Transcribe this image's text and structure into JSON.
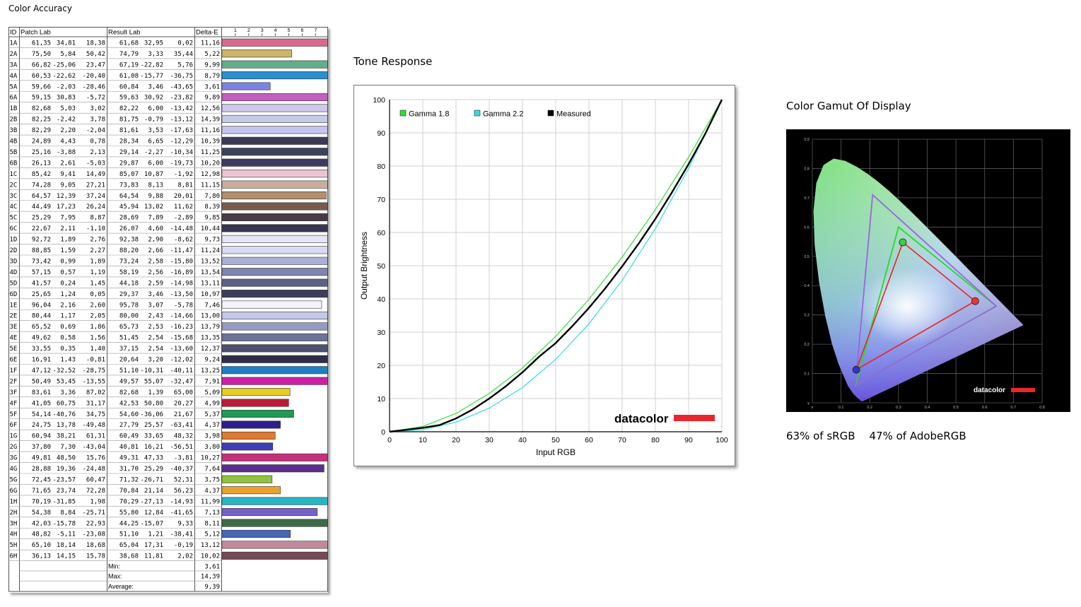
{
  "titles": {
    "color_accuracy": "Color Accuracy",
    "tone_response": "Tone Response",
    "color_gamut": "Color Gamut Of Display"
  },
  "coverage": {
    "srgb": "63% of sRGB",
    "adobe": "47% of AdobeRGB"
  },
  "brand": "datacolor",
  "colors": {
    "accent_red": "#e8262f",
    "gamma18": "#33dd33",
    "gamma22": "#33dddd",
    "measured": "#000000",
    "grid": "#d0d0d0",
    "srgb_triangle": "#22dd22",
    "adobe_triangle": "#9966dd",
    "display_triangle": "#ee2222"
  },
  "table": {
    "headers": {
      "id": "ID",
      "patch": "Patch Lab",
      "result": "Result Lab",
      "delta": "Delta-E"
    },
    "scale_ticks": [
      "1",
      "2",
      "3",
      "4",
      "5",
      "6",
      "7"
    ],
    "rows": [
      {
        "id": "1A",
        "p": [
          "61,35",
          "34,81",
          "18,38"
        ],
        "r": [
          "61,68",
          "32,95",
          "0,02"
        ],
        "d": "11,16",
        "de": 11.16,
        "color": "#d9688e"
      },
      {
        "id": "2A",
        "p": [
          "75,50",
          "5,84",
          "50,42"
        ],
        "r": [
          "74,79",
          "3,33",
          "35,44"
        ],
        "d": "5,22",
        "de": 5.22,
        "color": "#cdb56a"
      },
      {
        "id": "3A",
        "p": [
          "66,82",
          "-25,06",
          "23,47"
        ],
        "r": [
          "67,19",
          "-22,82",
          "5,76"
        ],
        "d": "9,99",
        "de": 9.99,
        "color": "#62ad8a"
      },
      {
        "id": "4A",
        "p": [
          "60,53",
          "-22,62",
          "-20,40"
        ],
        "r": [
          "61,08",
          "-15,77",
          "-36,75"
        ],
        "d": "8,79",
        "de": 8.79,
        "color": "#2a8fd0"
      },
      {
        "id": "5A",
        "p": [
          "59,66",
          "-2,03",
          "-28,46"
        ],
        "r": [
          "60,84",
          "3,46",
          "-43,65"
        ],
        "d": "3,61",
        "de": 3.61,
        "color": "#7a83e0"
      },
      {
        "id": "6A",
        "p": [
          "59,15",
          "30,83",
          "-5,72"
        ],
        "r": [
          "59,63",
          "30,92",
          "-23,82"
        ],
        "d": "9,89",
        "de": 9.89,
        "color": "#c25fbf"
      },
      {
        "id": "1B",
        "p": [
          "82,68",
          "5,03",
          "3,02"
        ],
        "r": [
          "82,22",
          "6,00",
          "-13,42"
        ],
        "d": "12,56",
        "de": 12.56,
        "color": "#cfc8ea"
      },
      {
        "id": "2B",
        "p": [
          "82,25",
          "-2,42",
          "3,78"
        ],
        "r": [
          "81,75",
          "-0,79",
          "-13,12"
        ],
        "d": "14,39",
        "de": 14.39,
        "color": "#c3cbe8"
      },
      {
        "id": "3B",
        "p": [
          "82,29",
          "2,20",
          "-2,04"
        ],
        "r": [
          "81,61",
          "3,53",
          "-17,63"
        ],
        "d": "11,16",
        "de": 11.16,
        "color": "#c5c3ef"
      },
      {
        "id": "4B",
        "p": [
          "24,89",
          "4,43",
          "0,78"
        ],
        "r": [
          "28,34",
          "6,65",
          "-12,29"
        ],
        "d": "10,39",
        "de": 10.39,
        "color": "#3d3a55"
      },
      {
        "id": "5B",
        "p": [
          "25,16",
          "-3,88",
          "2,13"
        ],
        "r": [
          "29,14",
          "-2,27",
          "-10,34"
        ],
        "d": "11,25",
        "de": 11.25,
        "color": "#3a4558"
      },
      {
        "id": "6B",
        "p": [
          "26,13",
          "2,61",
          "-5,03"
        ],
        "r": [
          "29,87",
          "6,00",
          "-19,73"
        ],
        "d": "10,20",
        "de": 10.2,
        "color": "#3d3b60"
      },
      {
        "id": "1C",
        "p": [
          "85,42",
          "9,41",
          "14,49"
        ],
        "r": [
          "85,07",
          "10,87",
          "-1,92"
        ],
        "d": "12,98",
        "de": 12.98,
        "color": "#ebc6d2"
      },
      {
        "id": "2C",
        "p": [
          "74,28",
          "9,05",
          "27,21"
        ],
        "r": [
          "73,83",
          "8,13",
          "8,81"
        ],
        "d": "11,15",
        "de": 11.15,
        "color": "#c8ad9d"
      },
      {
        "id": "3C",
        "p": [
          "64,57",
          "12,39",
          "37,24"
        ],
        "r": [
          "64,54",
          "9,88",
          "20,01"
        ],
        "d": "7,80",
        "de": 7.8,
        "color": "#b38f6e"
      },
      {
        "id": "4C",
        "p": [
          "44,49",
          "17,23",
          "26,24"
        ],
        "r": [
          "45,94",
          "13,02",
          "11,62"
        ],
        "d": "8,39",
        "de": 8.39,
        "color": "#7b5a4e"
      },
      {
        "id": "5C",
        "p": [
          "25,29",
          "7,95",
          "8,87"
        ],
        "r": [
          "28,69",
          "7,89",
          "-2,89"
        ],
        "d": "9,85",
        "de": 9.85,
        "color": "#4a3a44"
      },
      {
        "id": "6C",
        "p": [
          "22,67",
          "2,11",
          "-1,10"
        ],
        "r": [
          "26,07",
          "4,60",
          "-14,48"
        ],
        "d": "10,44",
        "de": 10.44,
        "color": "#38364f"
      },
      {
        "id": "1D",
        "p": [
          "92,72",
          "1,89",
          "2,76"
        ],
        "r": [
          "92,38",
          "2,90",
          "-8,62"
        ],
        "d": "9,73",
        "de": 9.73,
        "color": "#e5e5f5"
      },
      {
        "id": "2D",
        "p": [
          "88,85",
          "1,59",
          "2,27"
        ],
        "r": [
          "88,20",
          "2,66",
          "-11,47"
        ],
        "d": "11,24",
        "de": 11.24,
        "color": "#d8dcf2"
      },
      {
        "id": "3D",
        "p": [
          "73,42",
          "0,99",
          "1,89"
        ],
        "r": [
          "73,24",
          "2,58",
          "-15,80"
        ],
        "d": "13,52",
        "de": 13.52,
        "color": "#aab0d6"
      },
      {
        "id": "4D",
        "p": [
          "57,15",
          "0,57",
          "1,19"
        ],
        "r": [
          "58,19",
          "2,56",
          "-16,89"
        ],
        "d": "13,54",
        "de": 13.54,
        "color": "#7f85ad"
      },
      {
        "id": "5D",
        "p": [
          "41,57",
          "0,24",
          "1,45"
        ],
        "r": [
          "44,18",
          "2,59",
          "-14,98"
        ],
        "d": "13,11",
        "de": 13.11,
        "color": "#5c6085"
      },
      {
        "id": "6D",
        "p": [
          "25,65",
          "1,24",
          "0,05"
        ],
        "r": [
          "29,37",
          "3,46",
          "-13,50"
        ],
        "d": "10,97",
        "de": 10.97,
        "color": "#3c3e5a"
      },
      {
        "id": "1E",
        "p": [
          "96,04",
          "2,16",
          "2,60"
        ],
        "r": [
          "95,78",
          "3,07",
          "-5,78"
        ],
        "d": "7,46",
        "de": 7.46,
        "color": "#f4f3fb"
      },
      {
        "id": "2E",
        "p": [
          "80,44",
          "1,17",
          "2,05"
        ],
        "r": [
          "80,00",
          "2,43",
          "-14,66"
        ],
        "d": "13,00",
        "de": 13.0,
        "color": "#c6c8ea"
      },
      {
        "id": "3E",
        "p": [
          "65,52",
          "0,69",
          "1,86"
        ],
        "r": [
          "65,73",
          "2,53",
          "-16,23"
        ],
        "d": "13,79",
        "de": 13.79,
        "color": "#959bc4"
      },
      {
        "id": "4E",
        "p": [
          "49,62",
          "0,58",
          "1,56"
        ],
        "r": [
          "51,45",
          "2,54",
          "-15,68"
        ],
        "d": "13,35",
        "de": 13.35,
        "color": "#6d7299"
      },
      {
        "id": "5E",
        "p": [
          "33,55",
          "0,35",
          "1,40"
        ],
        "r": [
          "37,15",
          "2,54",
          "-13,60"
        ],
        "d": "12,37",
        "de": 12.37,
        "color": "#4e5170"
      },
      {
        "id": "6E",
        "p": [
          "16,91",
          "1,43",
          "-0,81"
        ],
        "r": [
          "20,64",
          "3,20",
          "-12,02"
        ],
        "d": "9,24",
        "de": 9.24,
        "color": "#2d2d45"
      },
      {
        "id": "1F",
        "p": [
          "47,12",
          "-32,52",
          "-28,75"
        ],
        "r": [
          "51,10",
          "-10,31",
          "-40,11"
        ],
        "d": "13,25",
        "de": 13.25,
        "color": "#1f7fc2"
      },
      {
        "id": "2F",
        "p": [
          "50,49",
          "53,45",
          "-13,55"
        ],
        "r": [
          "49,57",
          "55,07",
          "-32,47"
        ],
        "d": "7,91",
        "de": 7.91,
        "color": "#cc1fa6"
      },
      {
        "id": "3F",
        "p": [
          "83,61",
          "3,36",
          "87,02"
        ],
        "r": [
          "82,68",
          "1,39",
          "65,00"
        ],
        "d": "5,09",
        "de": 5.09,
        "color": "#e6cd2a"
      },
      {
        "id": "4F",
        "p": [
          "41,05",
          "60,75",
          "31,17"
        ],
        "r": [
          "42,53",
          "50,80",
          "20,27"
        ],
        "d": "4,99",
        "de": 4.99,
        "color": "#c01a3b"
      },
      {
        "id": "5F",
        "p": [
          "54,14",
          "-40,76",
          "34,75"
        ],
        "r": [
          "54,60",
          "-36,06",
          "21,67"
        ],
        "d": "5,37",
        "de": 5.37,
        "color": "#1e9a55"
      },
      {
        "id": "6F",
        "p": [
          "24,75",
          "13,78",
          "-49,48"
        ],
        "r": [
          "27,79",
          "25,57",
          "-63,41"
        ],
        "d": "4,37",
        "de": 4.37,
        "color": "#2c1e8e"
      },
      {
        "id": "1G",
        "p": [
          "60,94",
          "38,21",
          "61,31"
        ],
        "r": [
          "60,49",
          "33,65",
          "48,32"
        ],
        "d": "3,98",
        "de": 3.98,
        "color": "#e07a2e"
      },
      {
        "id": "2G",
        "p": [
          "37,80",
          "7,30",
          "-43,04"
        ],
        "r": [
          "40,81",
          "16,21",
          "-56,51"
        ],
        "d": "3,80",
        "de": 3.8,
        "color": "#3d3fb7"
      },
      {
        "id": "3G",
        "p": [
          "49,81",
          "48,50",
          "15,76"
        ],
        "r": [
          "49,31",
          "47,33",
          "-3,81"
        ],
        "d": "10,27",
        "de": 10.27,
        "color": "#c5317c"
      },
      {
        "id": "4G",
        "p": [
          "28,88",
          "19,36",
          "-24,48"
        ],
        "r": [
          "31,70",
          "25,29",
          "-40,37"
        ],
        "d": "7,64",
        "de": 7.64,
        "color": "#5a2d8e"
      },
      {
        "id": "5G",
        "p": [
          "72,45",
          "-23,57",
          "60,47"
        ],
        "r": [
          "71,32",
          "-26,71",
          "52,31"
        ],
        "d": "3,75",
        "de": 3.75,
        "color": "#8fc23e"
      },
      {
        "id": "6G",
        "p": [
          "71,65",
          "23,74",
          "72,28"
        ],
        "r": [
          "70,84",
          "21,14",
          "56,23"
        ],
        "d": "4,37",
        "de": 4.37,
        "color": "#eaa22e"
      },
      {
        "id": "1H",
        "p": [
          "70,19",
          "-31,85",
          "1,98"
        ],
        "r": [
          "70,29",
          "-27,13",
          "-14,93"
        ],
        "d": "11,99",
        "de": 11.99,
        "color": "#27b5c2"
      },
      {
        "id": "2H",
        "p": [
          "54,38",
          "8,84",
          "-25,71"
        ],
        "r": [
          "55,80",
          "12,84",
          "-41,65"
        ],
        "d": "7,13",
        "de": 7.13,
        "color": "#7562c8"
      },
      {
        "id": "3H",
        "p": [
          "42,03",
          "-15,78",
          "22,93"
        ],
        "r": [
          "44,25",
          "-15,07",
          "9,33"
        ],
        "d": "8,11",
        "de": 8.11,
        "color": "#3e6a45"
      },
      {
        "id": "4H",
        "p": [
          "48,82",
          "-5,11",
          "-23,08"
        ],
        "r": [
          "51,10",
          "1,21",
          "-38,41"
        ],
        "d": "5,12",
        "de": 5.12,
        "color": "#4a66b7"
      },
      {
        "id": "5H",
        "p": [
          "65,10",
          "18,14",
          "18,68"
        ],
        "r": [
          "65,04",
          "17,31",
          "-0,19"
        ],
        "d": "13,12",
        "de": 13.12,
        "color": "#c2899b"
      },
      {
        "id": "6H",
        "p": [
          "36,13",
          "14,15",
          "15,78"
        ],
        "r": [
          "38,68",
          "11,81",
          "2,02"
        ],
        "d": "10,02",
        "de": 10.02,
        "color": "#744c55"
      }
    ],
    "summary": [
      {
        "label": "Min:",
        "value": "3,61"
      },
      {
        "label": "Max:",
        "value": "14,39"
      },
      {
        "label": "Average:",
        "value": "9,39"
      }
    ]
  },
  "chart_data": [
    {
      "type": "line",
      "title": "Tone Response",
      "xlabel": "Input RGB",
      "ylabel": "Output Brightness",
      "xlim": [
        0,
        100
      ],
      "ylim": [
        0,
        100
      ],
      "xticks": [
        "0",
        "10",
        "20",
        "30",
        "40",
        "50",
        "60",
        "70",
        "80",
        "90",
        "100"
      ],
      "yticks": [
        "0",
        "10",
        "20",
        "30",
        "40",
        "50",
        "60",
        "70",
        "80",
        "90",
        "100"
      ],
      "grid": true,
      "legend_position": "top-left",
      "series": [
        {
          "name": "Gamma 1.8",
          "color": "#33dd33",
          "x": [
            0,
            10,
            20,
            30,
            40,
            50,
            60,
            70,
            80,
            90,
            100
          ],
          "y": [
            0,
            1.6,
            5.5,
            11.5,
            19.2,
            28.7,
            39.9,
            52.6,
            66.9,
            82.7,
            100
          ]
        },
        {
          "name": "Gamma 2.2",
          "color": "#33dddd",
          "x": [
            0,
            10,
            20,
            30,
            40,
            50,
            60,
            70,
            80,
            90,
            100
          ],
          "y": [
            0,
            0.6,
            2.9,
            7.1,
            13.3,
            21.8,
            32.5,
            45.6,
            61.2,
            79.3,
            100
          ]
        },
        {
          "name": "Measured",
          "color": "#000000",
          "x": [
            0,
            5,
            10,
            15,
            20,
            25,
            30,
            35,
            40,
            45,
            50,
            55,
            60,
            65,
            70,
            75,
            80,
            85,
            90,
            95,
            100
          ],
          "y": [
            0,
            0.6,
            1.2,
            2.0,
            4.0,
            6.7,
            10.0,
            13.7,
            17.9,
            22.6,
            26.7,
            31.8,
            37.3,
            43.3,
            49.8,
            56.7,
            64.1,
            72.1,
            80.6,
            89.7,
            100
          ]
        }
      ]
    },
    {
      "type": "scatter",
      "title": "Color Gamut Of Display",
      "xlim": [
        0,
        0.8
      ],
      "ylim": [
        0,
        0.9
      ],
      "xticks": [
        "x",
        "0.1",
        "0.2",
        "0.3",
        "0.4",
        "0.5",
        "0.6",
        "0.7",
        "0.8"
      ],
      "yticks": [
        "y",
        "0.1",
        "0.2",
        "0.3",
        "0.4",
        "0.5",
        "0.6",
        "0.7",
        "0.8",
        "0.9"
      ],
      "grid": true,
      "series": [
        {
          "name": "sRGB",
          "points": [
            [
              0.64,
              0.33
            ],
            [
              0.3,
              0.6
            ],
            [
              0.15,
              0.06
            ]
          ]
        },
        {
          "name": "AdobeRGB",
          "points": [
            [
              0.64,
              0.33
            ],
            [
              0.21,
              0.71
            ],
            [
              0.15,
              0.06
            ]
          ]
        },
        {
          "name": "Display",
          "points": [
            [
              0.567,
              0.347
            ],
            [
              0.315,
              0.548
            ],
            [
              0.153,
              0.113
            ]
          ]
        }
      ]
    }
  ]
}
